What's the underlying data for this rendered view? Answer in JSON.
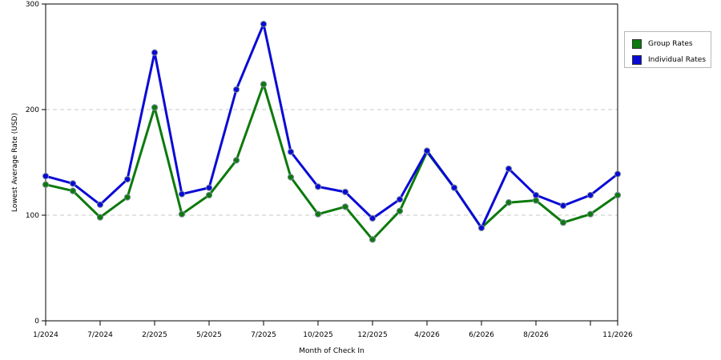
{
  "chart_data": {
    "type": "line",
    "xlabel": "Month of Check In",
    "ylabel": "Lowest Average Rate (USD)",
    "ylim": [
      0,
      300
    ],
    "yticks": [
      0,
      100,
      200,
      300
    ],
    "grid": "horizontal dashed",
    "legend_position": "right",
    "x_tick_labels": [
      {
        "index": 0,
        "label": "1/2024"
      },
      {
        "index": 2,
        "label": "7/2024"
      },
      {
        "index": 4,
        "label": "2/2025"
      },
      {
        "index": 6,
        "label": "5/2025"
      },
      {
        "index": 8,
        "label": "7/2025"
      },
      {
        "index": 10,
        "label": "10/2025"
      },
      {
        "index": 12,
        "label": "12/2025"
      },
      {
        "index": 14,
        "label": "4/2026"
      },
      {
        "index": 16,
        "label": "6/2026"
      },
      {
        "index": 18,
        "label": "8/2026"
      },
      {
        "index": 20,
        "label": ""
      },
      {
        "index": 21,
        "label": "11/2026"
      }
    ],
    "series": [
      {
        "name": "Group Rates",
        "color": "#0c7a0c",
        "values": [
          129,
          123,
          98,
          117,
          202,
          101,
          119,
          152,
          224,
          136,
          101,
          108,
          77,
          104,
          160,
          126,
          88,
          112,
          114,
          93,
          101,
          119
        ]
      },
      {
        "name": "Individual Rates",
        "color": "#0a0ad6",
        "values": [
          137,
          130,
          110,
          134,
          254,
          120,
          126,
          219,
          281,
          160,
          127,
          122,
          97,
          115,
          161,
          126,
          88,
          144,
          119,
          109,
          119,
          139
        ]
      }
    ]
  }
}
